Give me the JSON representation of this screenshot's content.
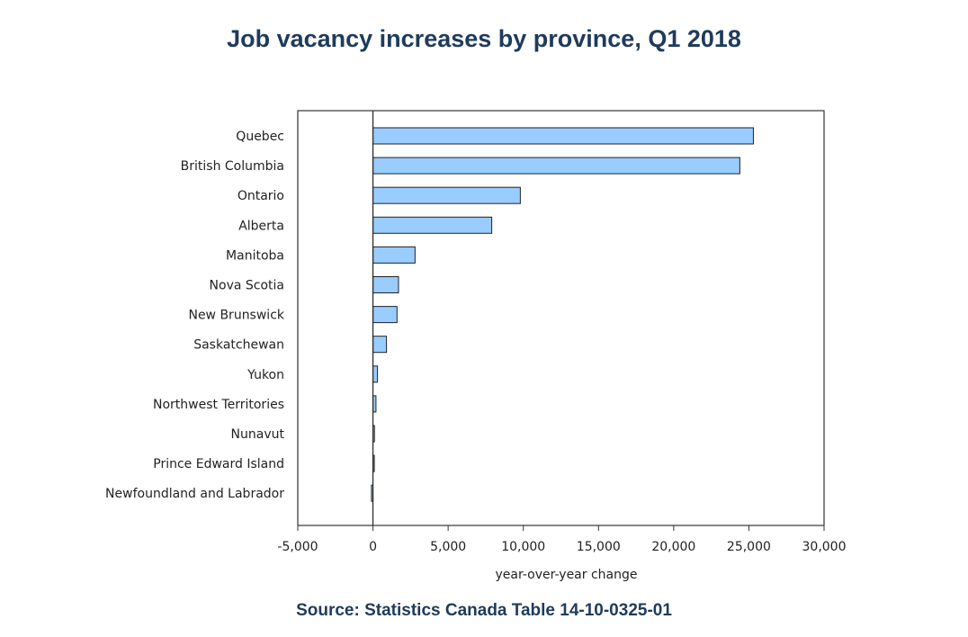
{
  "chart_data": {
    "type": "bar",
    "orientation": "horizontal",
    "title": "Job vacancy increases by province, Q1 2018",
    "xlabel": "year-over-year change",
    "ylabel": "",
    "categories": [
      "Quebec",
      "British Columbia",
      "Ontario",
      "Alberta",
      "Manitoba",
      "Nova Scotia",
      "New Brunswick",
      "Saskatchewan",
      "Yukon",
      "Northwest Territories",
      "Nunavut",
      "Prince Edward Island",
      "Newfoundland and Labrador"
    ],
    "values": [
      25300,
      24400,
      9800,
      7900,
      2800,
      1700,
      1600,
      900,
      300,
      200,
      100,
      50,
      -100
    ],
    "xlim": [
      -5000,
      30000
    ],
    "xticks": [
      -5000,
      0,
      5000,
      10000,
      15000,
      20000,
      25000,
      30000
    ],
    "xtick_labels": [
      "-5,000",
      "0",
      "5,000",
      "10,000",
      "15,000",
      "20,000",
      "25,000",
      "30,000"
    ],
    "grid": false,
    "bar_color": "#99ccff",
    "bar_edge_color": "#222222"
  },
  "source": "Source: Statistics Canada Table 14-10-0325-01"
}
